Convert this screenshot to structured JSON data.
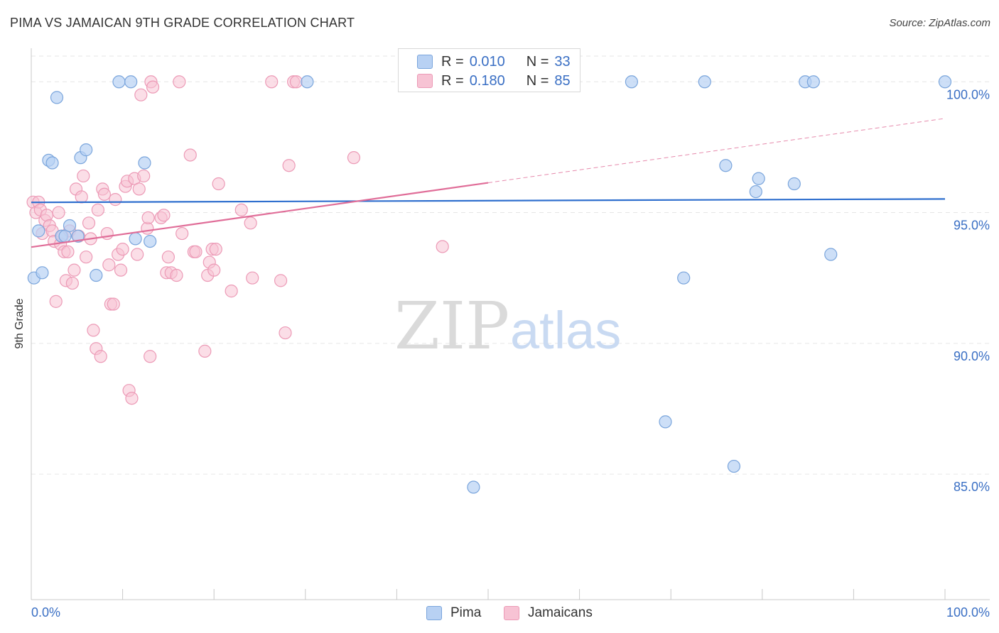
{
  "title": "PIMA VS JAMAICAN 9TH GRADE CORRELATION CHART",
  "source": "Source: ZipAtlas.com",
  "watermark": {
    "zip": "ZIP",
    "atlas": "atlas"
  },
  "legend_top": [
    {
      "r_label": "R =",
      "r_value": "0.010",
      "n_label": "N =",
      "n_value": "33"
    },
    {
      "r_label": "R =",
      "r_value": "0.180",
      "n_label": "N =",
      "n_value": "85"
    }
  ],
  "legend_bottom": [
    {
      "label": "Pima"
    },
    {
      "label": "Jamaicans"
    }
  ],
  "colors": {
    "pima_fill": "#b8d1f3",
    "pima_stroke": "#7aa5dc",
    "pima_line": "#2f6fce",
    "jam_fill": "#f7c3d4",
    "jam_stroke": "#ec9ab6",
    "jam_line": "#e06d98",
    "tick_label": "#3a6fc4",
    "grid": "#e6e6e6"
  },
  "chart_data": {
    "type": "scatter",
    "title": "PIMA VS JAMAICAN 9TH GRADE CORRELATION CHART",
    "xlabel": "",
    "ylabel": "9th Grade",
    "xlim": [
      0,
      100
    ],
    "ylim": [
      80.2,
      101.5
    ],
    "x_tick_labels": [
      {
        "value": 0,
        "label": "0.0%"
      },
      {
        "value": 100,
        "label": "100.0%"
      }
    ],
    "y_ticks": [
      {
        "value": 100,
        "label": "100.0%"
      },
      {
        "value": 95,
        "label": "95.0%"
      },
      {
        "value": 90,
        "label": "90.0%"
      },
      {
        "value": 85,
        "label": "85.0%"
      }
    ],
    "x_minor_ticks": [
      0,
      10,
      20,
      30,
      40,
      50,
      60,
      70,
      80,
      90,
      100
    ],
    "series": [
      {
        "name": "Pima",
        "r": 0.01,
        "n": 33,
        "trend": {
          "x": [
            0,
            100
          ],
          "y": [
            95.39,
            95.52
          ],
          "dashed_from": null
        },
        "points": [
          {
            "x": 0.3,
            "y": 92.5
          },
          {
            "x": 1.2,
            "y": 92.7
          },
          {
            "x": 0.8,
            "y": 94.3
          },
          {
            "x": 1.9,
            "y": 97.0
          },
          {
            "x": 2.3,
            "y": 96.9
          },
          {
            "x": 2.8,
            "y": 99.4
          },
          {
            "x": 3.3,
            "y": 94.1
          },
          {
            "x": 3.7,
            "y": 94.1
          },
          {
            "x": 4.2,
            "y": 94.5
          },
          {
            "x": 5.1,
            "y": 94.1
          },
          {
            "x": 5.4,
            "y": 97.1
          },
          {
            "x": 6.0,
            "y": 97.4
          },
          {
            "x": 7.1,
            "y": 92.6
          },
          {
            "x": 9.6,
            "y": 100.0
          },
          {
            "x": 10.9,
            "y": 100.0
          },
          {
            "x": 11.4,
            "y": 94.0
          },
          {
            "x": 12.4,
            "y": 96.9
          },
          {
            "x": 13.0,
            "y": 93.9
          },
          {
            "x": 30.2,
            "y": 100.0
          },
          {
            "x": 48.4,
            "y": 84.5
          },
          {
            "x": 65.7,
            "y": 100.0
          },
          {
            "x": 69.4,
            "y": 87.0
          },
          {
            "x": 71.4,
            "y": 92.5
          },
          {
            "x": 73.7,
            "y": 100.0
          },
          {
            "x": 76.9,
            "y": 85.3
          },
          {
            "x": 76.0,
            "y": 96.8
          },
          {
            "x": 79.3,
            "y": 95.8
          },
          {
            "x": 79.6,
            "y": 96.3
          },
          {
            "x": 83.5,
            "y": 96.1
          },
          {
            "x": 84.7,
            "y": 100.0
          },
          {
            "x": 85.6,
            "y": 100.0
          },
          {
            "x": 87.5,
            "y": 93.4
          },
          {
            "x": 100,
            "y": 100.0
          }
        ]
      },
      {
        "name": "Jamaicans",
        "r": 0.18,
        "n": 85,
        "trend": {
          "x": [
            0,
            100
          ],
          "y": [
            93.68,
            98.6
          ],
          "dashed_from": 50
        },
        "points": [
          {
            "x": 0.2,
            "y": 95.4
          },
          {
            "x": 0.5,
            "y": 95.0
          },
          {
            "x": 0.8,
            "y": 95.4
          },
          {
            "x": 1.0,
            "y": 95.1
          },
          {
            "x": 1.2,
            "y": 94.2
          },
          {
            "x": 1.5,
            "y": 94.7
          },
          {
            "x": 1.7,
            "y": 94.9
          },
          {
            "x": 2.0,
            "y": 94.5
          },
          {
            "x": 2.3,
            "y": 94.3
          },
          {
            "x": 2.5,
            "y": 93.9
          },
          {
            "x": 2.7,
            "y": 91.6
          },
          {
            "x": 3.0,
            "y": 95.0
          },
          {
            "x": 3.2,
            "y": 93.8
          },
          {
            "x": 3.4,
            "y": 94.1
          },
          {
            "x": 3.6,
            "y": 93.5
          },
          {
            "x": 3.8,
            "y": 92.4
          },
          {
            "x": 4.0,
            "y": 93.5
          },
          {
            "x": 4.2,
            "y": 94.3
          },
          {
            "x": 4.5,
            "y": 92.3
          },
          {
            "x": 4.7,
            "y": 92.8
          },
          {
            "x": 4.9,
            "y": 95.9
          },
          {
            "x": 5.2,
            "y": 94.1
          },
          {
            "x": 5.5,
            "y": 95.6
          },
          {
            "x": 5.7,
            "y": 96.4
          },
          {
            "x": 6.0,
            "y": 93.3
          },
          {
            "x": 6.3,
            "y": 94.6
          },
          {
            "x": 6.5,
            "y": 94.0
          },
          {
            "x": 6.8,
            "y": 90.5
          },
          {
            "x": 7.1,
            "y": 89.8
          },
          {
            "x": 7.3,
            "y": 95.1
          },
          {
            "x": 7.6,
            "y": 89.5
          },
          {
            "x": 7.8,
            "y": 95.9
          },
          {
            "x": 8.0,
            "y": 95.7
          },
          {
            "x": 8.3,
            "y": 94.2
          },
          {
            "x": 8.5,
            "y": 93.0
          },
          {
            "x": 8.7,
            "y": 91.5
          },
          {
            "x": 9.0,
            "y": 91.5
          },
          {
            "x": 9.2,
            "y": 95.5
          },
          {
            "x": 9.5,
            "y": 93.4
          },
          {
            "x": 9.8,
            "y": 92.8
          },
          {
            "x": 10.0,
            "y": 93.6
          },
          {
            "x": 10.3,
            "y": 96.0
          },
          {
            "x": 10.5,
            "y": 96.2
          },
          {
            "x": 10.7,
            "y": 88.2
          },
          {
            "x": 11.0,
            "y": 87.9
          },
          {
            "x": 11.3,
            "y": 96.3
          },
          {
            "x": 11.6,
            "y": 93.4
          },
          {
            "x": 11.8,
            "y": 95.9
          },
          {
            "x": 12.0,
            "y": 99.5
          },
          {
            "x": 12.3,
            "y": 96.4
          },
          {
            "x": 12.7,
            "y": 94.4
          },
          {
            "x": 13.0,
            "y": 89.5
          },
          {
            "x": 13.1,
            "y": 100.0
          },
          {
            "x": 13.3,
            "y": 99.8
          },
          {
            "x": 14.2,
            "y": 94.8
          },
          {
            "x": 14.5,
            "y": 94.9
          },
          {
            "x": 14.8,
            "y": 92.7
          },
          {
            "x": 15.0,
            "y": 93.3
          },
          {
            "x": 15.3,
            "y": 92.7
          },
          {
            "x": 15.9,
            "y": 92.6
          },
          {
            "x": 16.2,
            "y": 100.0
          },
          {
            "x": 16.5,
            "y": 94.2
          },
          {
            "x": 17.4,
            "y": 97.2
          },
          {
            "x": 17.8,
            "y": 93.5
          },
          {
            "x": 18.0,
            "y": 93.5
          },
          {
            "x": 19.0,
            "y": 89.7
          },
          {
            "x": 19.3,
            "y": 92.6
          },
          {
            "x": 19.5,
            "y": 93.1
          },
          {
            "x": 19.8,
            "y": 93.6
          },
          {
            "x": 20.0,
            "y": 92.8
          },
          {
            "x": 20.2,
            "y": 93.6
          },
          {
            "x": 20.5,
            "y": 96.1
          },
          {
            "x": 21.9,
            "y": 92.0
          },
          {
            "x": 23.0,
            "y": 95.1
          },
          {
            "x": 24.0,
            "y": 94.6
          },
          {
            "x": 24.2,
            "y": 92.5
          },
          {
            "x": 26.3,
            "y": 100.0
          },
          {
            "x": 27.3,
            "y": 92.4
          },
          {
            "x": 27.8,
            "y": 90.4
          },
          {
            "x": 28.2,
            "y": 96.8
          },
          {
            "x": 28.7,
            "y": 100.0
          },
          {
            "x": 29.0,
            "y": 100.0
          },
          {
            "x": 35.3,
            "y": 97.1
          },
          {
            "x": 45.0,
            "y": 93.7
          },
          {
            "x": 12.8,
            "y": 94.8
          }
        ]
      }
    ]
  }
}
